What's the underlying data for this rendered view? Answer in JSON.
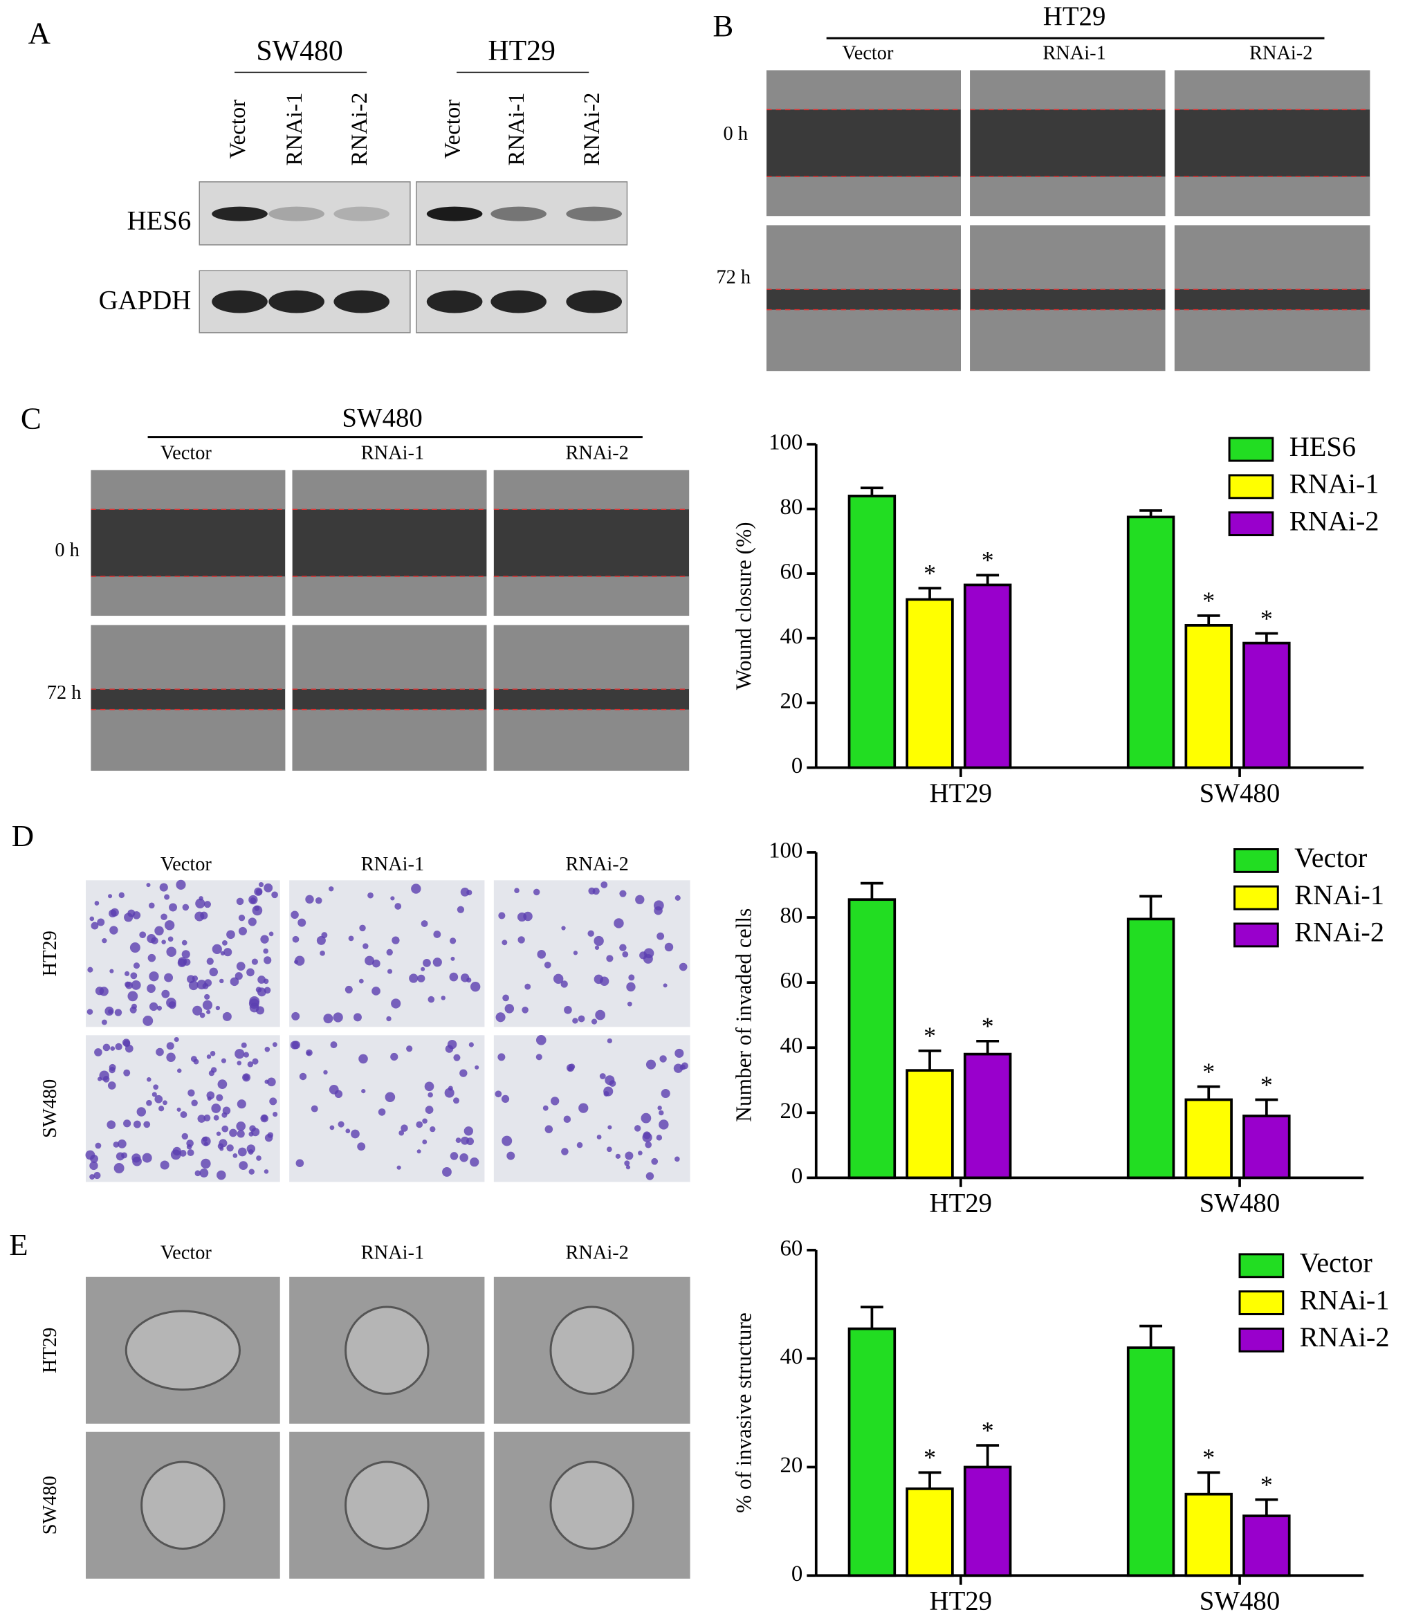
{
  "blot": {
    "label": "A",
    "groups": [
      "SW480",
      "HT29"
    ],
    "lanes": [
      "Vector",
      "RNAi-1",
      "RNAi-2",
      "Vector",
      "RNAi-1",
      "RNAi-2"
    ],
    "rows": [
      "HES6",
      "GAPDH"
    ]
  },
  "wound_ht29": {
    "label": "B",
    "title": "HT29",
    "columns": [
      "Vector",
      "RNAi-1",
      "RNAi-2"
    ],
    "rows": [
      "0 h",
      "72 h"
    ]
  },
  "wound_sw480": {
    "label": "C",
    "title": "SW480",
    "columns": [
      "Vector",
      "RNAi-1",
      "RNAi-2"
    ],
    "rows": [
      "0 h",
      "72 h"
    ]
  },
  "invasion": {
    "label": "D",
    "columns": [
      "Vector",
      "RNAi-1",
      "RNAi-2"
    ],
    "rows": [
      "HT29",
      "SW480"
    ]
  },
  "organoid": {
    "label": "E",
    "columns": [
      "Vector",
      "RNAi-1",
      "RNAi-2"
    ],
    "rows": [
      "HT29",
      "SW480"
    ]
  },
  "chart_data": [
    {
      "type": "bar",
      "ylabel": "Wound closure (%)",
      "categories": [
        "HT29",
        "SW480"
      ],
      "ylim": [
        0,
        100
      ],
      "yticks": [
        0,
        20,
        40,
        60,
        80,
        100
      ],
      "series": [
        {
          "name": "HES6",
          "color": "#22dd22",
          "values": [
            84,
            77.5
          ],
          "errors": [
            2.5,
            2
          ]
        },
        {
          "name": "RNAi-1",
          "color": "#ffff00",
          "values": [
            52,
            44
          ],
          "errors": [
            3.5,
            3
          ],
          "annotations": [
            "*",
            "*"
          ]
        },
        {
          "name": "RNAi-2",
          "color": "#9900cc",
          "values": [
            56.5,
            38.5
          ],
          "errors": [
            3,
            3
          ],
          "annotations": [
            "*",
            "*"
          ]
        }
      ]
    },
    {
      "type": "bar",
      "ylabel": "Number of invaded cells",
      "categories": [
        "HT29",
        "SW480"
      ],
      "ylim": [
        0,
        100
      ],
      "yticks": [
        0,
        20,
        40,
        60,
        80,
        100
      ],
      "series": [
        {
          "name": "Vector",
          "color": "#22dd22",
          "values": [
            85.5,
            79.5
          ],
          "errors": [
            5,
            7
          ]
        },
        {
          "name": "RNAi-1",
          "color": "#ffff00",
          "values": [
            33,
            24
          ],
          "errors": [
            6,
            4
          ],
          "annotations": [
            "*",
            "*"
          ]
        },
        {
          "name": "RNAi-2",
          "color": "#9900cc",
          "values": [
            38,
            19
          ],
          "errors": [
            4,
            5
          ],
          "annotations": [
            "*",
            "*"
          ]
        }
      ]
    },
    {
      "type": "bar",
      "ylabel": "% of invasive structure",
      "categories": [
        "HT29",
        "SW480"
      ],
      "ylim": [
        0,
        60
      ],
      "yticks": [
        0,
        20,
        40,
        60
      ],
      "series": [
        {
          "name": "Vector",
          "color": "#22dd22",
          "values": [
            45.5,
            42
          ],
          "errors": [
            4,
            4
          ]
        },
        {
          "name": "RNAi-1",
          "color": "#ffff00",
          "values": [
            16,
            15
          ],
          "errors": [
            3,
            4
          ],
          "annotations": [
            "*",
            "*"
          ]
        },
        {
          "name": "RNAi-2",
          "color": "#9900cc",
          "values": [
            20,
            11
          ],
          "errors": [
            4,
            3
          ],
          "annotations": [
            "*",
            "*"
          ]
        }
      ]
    }
  ]
}
